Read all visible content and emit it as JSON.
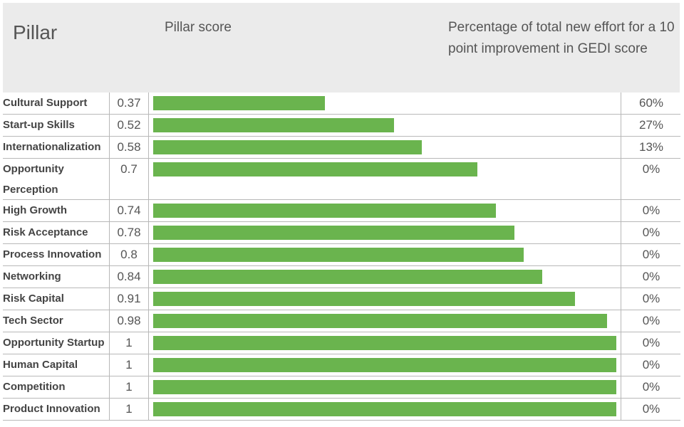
{
  "header": {
    "pillar_label": "Pillar",
    "score_label": "Pillar score",
    "pct_label": "Percentage of total new effort for a 10 point improvement in GEDI score"
  },
  "chart_data": {
    "type": "bar",
    "orientation": "horizontal",
    "xlim": [
      0,
      1
    ],
    "categories": [
      "Cultural Support",
      "Start-up Skills",
      "Internationalization",
      "Opportunity Perception",
      "High Growth",
      "Risk Acceptance",
      "Process Innovation",
      "Networking",
      "Risk Capital",
      "Tech Sector",
      "Opportunity Startup",
      "Human Capital",
      "Competition",
      "Product Innovation"
    ],
    "score_labels": [
      "0.37",
      "0.52",
      "0.58",
      "0.7",
      "0.74",
      "0.78",
      "0.8",
      "0.84",
      "0.91",
      "0.98",
      "1",
      "1",
      "1",
      "1"
    ],
    "values": [
      0.37,
      0.52,
      0.58,
      0.7,
      0.74,
      0.78,
      0.8,
      0.84,
      0.91,
      0.98,
      1,
      1,
      1,
      1
    ],
    "effort_pct": [
      "60%",
      "27%",
      "13%",
      "0%",
      "0%",
      "0%",
      "0%",
      "0%",
      "0%",
      "0%",
      "0%",
      "0%",
      "0%",
      "0%"
    ],
    "bar_color": "#6ab44e"
  }
}
